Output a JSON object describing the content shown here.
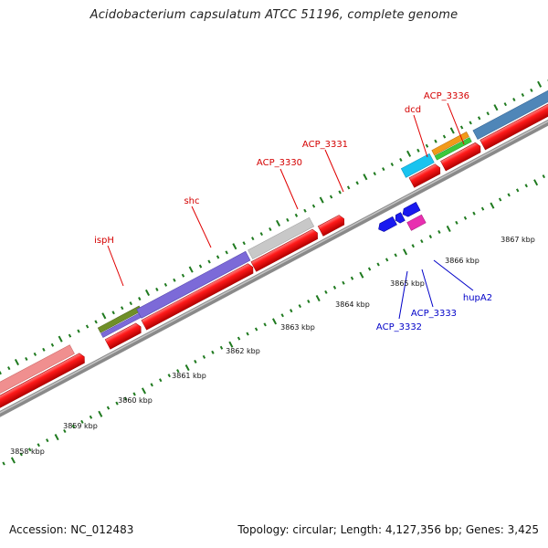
{
  "title": "Acidobacterium capsulatum ATCC 51196, complete genome",
  "footer": {
    "accession": "Accession: NC_012483",
    "topology": "Topology: circular; Length: 4,127,356 bp; Genes: 3,425"
  },
  "colors": {
    "cds_red": "#ff1a1a",
    "backbone": "#8a8a8a",
    "tick": "#1f7a1f",
    "forward_label": "#d40000",
    "reverse_label": "#0000c8"
  },
  "scale_labels": [
    "3858 kbp",
    "3859 kbp",
    "3860 kbp",
    "3861 kbp",
    "3862 kbp",
    "3863 kbp",
    "3864 kbp",
    "3865 kbp",
    "3866 kbp",
    "3867 kbp"
  ],
  "gene_labels": [
    {
      "name": "ispH",
      "strand": "forward"
    },
    {
      "name": "shc",
      "strand": "forward"
    },
    {
      "name": "ACP_3330",
      "strand": "forward"
    },
    {
      "name": "ACP_3331",
      "strand": "forward"
    },
    {
      "name": "dcd",
      "strand": "forward"
    },
    {
      "name": "ACP_3336",
      "strand": "forward"
    },
    {
      "name": "ACP_3332",
      "strand": "reverse"
    },
    {
      "name": "ACP_3333",
      "strand": "reverse"
    },
    {
      "name": "hupA2",
      "strand": "reverse"
    }
  ],
  "feature_colors": {
    "pink": "#f08f8f",
    "olive": "#6f8f28",
    "purple": "#7c6ad8",
    "gray": "#c8c8c8",
    "cyan": "#19c3ef",
    "orange": "#f29a1a",
    "green": "#3cc83c",
    "steel_blue": "#4f86b8",
    "blue": "#1a1aef",
    "magenta": "#e82fb0"
  }
}
